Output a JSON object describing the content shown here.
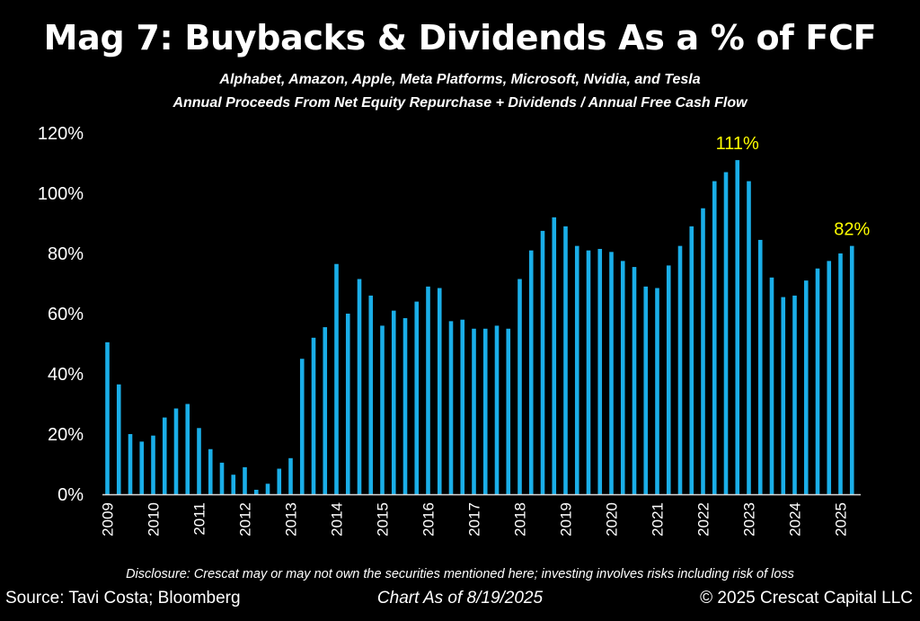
{
  "chart_data": {
    "type": "bar",
    "title": "Mag 7: Buybacks & Dividends As a % of FCF",
    "subtitle": [
      "Alphabet, Amazon, Apple, Meta Platforms, Microsoft, Nvidia, and Tesla",
      "Annual Proceeds From Net Equity Repurchase + Dividends / Annual Free Cash Flow"
    ],
    "xlabel": "",
    "ylabel": "",
    "ylim": [
      0,
      120
    ],
    "yticks": [
      0,
      20,
      40,
      60,
      80,
      100,
      120
    ],
    "ytick_labels": [
      "0%",
      "20%",
      "40%",
      "60%",
      "80%",
      "100%",
      "120%"
    ],
    "xtick_labels": [
      "2009",
      "2010",
      "2011",
      "2012",
      "2013",
      "2014",
      "2015",
      "2016",
      "2017",
      "2018",
      "2019",
      "2020",
      "2021",
      "2022",
      "2023",
      "2024",
      "2025"
    ],
    "grid": false,
    "bar_color": "#1AAEE8",
    "values": [
      50.5,
      36.5,
      20,
      17.5,
      19.5,
      25.5,
      28.5,
      30,
      22,
      15,
      10.5,
      6.5,
      9,
      1.5,
      3.5,
      8.5,
      12,
      45,
      52,
      55.5,
      76.5,
      60,
      71.5,
      66,
      56,
      61,
      58.5,
      64,
      69,
      68.5,
      57.5,
      58,
      55,
      55,
      56,
      55,
      71.5,
      81,
      87.5,
      92,
      89,
      82.5,
      81,
      81.5,
      80.5,
      77.5,
      75.5,
      69,
      68.5,
      76,
      82.5,
      89,
      95,
      104,
      107,
      111,
      104,
      84.5,
      72,
      65.5,
      66,
      71,
      75,
      77.5,
      80,
      82.5
    ],
    "annotations": [
      {
        "text": "111%",
        "index": 55,
        "color": "#ffff00"
      },
      {
        "text": "82%",
        "index": 65,
        "color": "#ffff00"
      }
    ]
  },
  "footer": {
    "disclosure": "Disclosure: Crescat may or may not own the securities mentioned here; investing involves risks including risk of loss",
    "source": "Source: Tavi Costa; Bloomberg",
    "as_of": "Chart As of 8/19/2025",
    "copyright": "© 2025 Crescat Capital LLC"
  }
}
